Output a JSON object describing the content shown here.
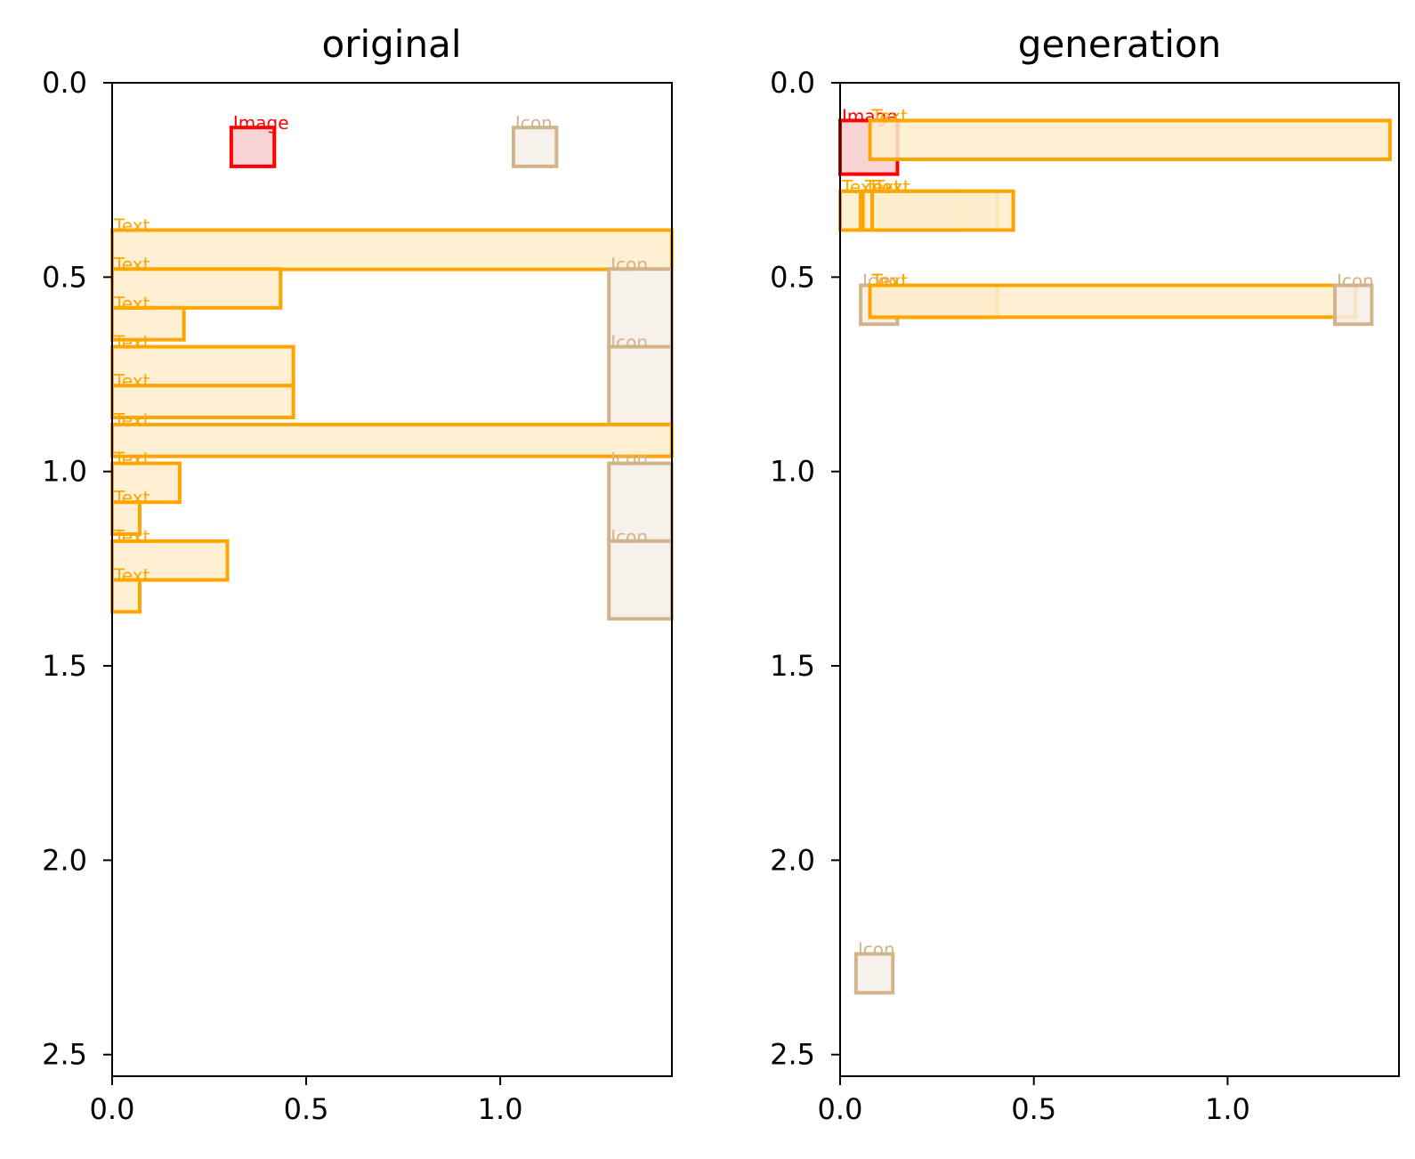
{
  "chart_data": [
    {
      "type": "box-layout",
      "title": "original",
      "xlim": [
        0,
        1.4423
      ],
      "ylim": [
        2.5556,
        0
      ],
      "xticks": [
        "0.0",
        "0.5",
        "1.0"
      ],
      "yticks": [
        "0.0",
        "0.5",
        "1.0",
        "1.5",
        "2.0",
        "2.5"
      ],
      "boxes": [
        {
          "label": "Image",
          "kind": "image",
          "x0": 0.307,
          "y0": 0.115,
          "x1": 0.418,
          "y1": 0.215
        },
        {
          "label": "Icon",
          "kind": "icon",
          "x0": 1.034,
          "y0": 0.115,
          "x1": 1.145,
          "y1": 0.215
        },
        {
          "label": "Text",
          "kind": "text",
          "x0": 0.0,
          "y0": 0.379,
          "x1": 1.442,
          "y1": 0.48
        },
        {
          "label": "Text",
          "kind": "text",
          "x0": 0.0,
          "y0": 0.479,
          "x1": 0.434,
          "y1": 0.579
        },
        {
          "label": "Icon",
          "kind": "icon",
          "x0": 1.28,
          "y0": 0.479,
          "x1": 1.442,
          "y1": 0.679
        },
        {
          "label": "Text",
          "kind": "text",
          "x0": 0.0,
          "y0": 0.579,
          "x1": 0.185,
          "y1": 0.661
        },
        {
          "label": "Text",
          "kind": "text",
          "x0": 0.0,
          "y0": 0.679,
          "x1": 0.467,
          "y1": 0.779
        },
        {
          "label": "Icon",
          "kind": "icon",
          "x0": 1.28,
          "y0": 0.679,
          "x1": 1.442,
          "y1": 0.879
        },
        {
          "label": "Text",
          "kind": "text",
          "x0": 0.0,
          "y0": 0.779,
          "x1": 0.467,
          "y1": 0.861
        },
        {
          "label": "Text",
          "kind": "text",
          "x0": 0.0,
          "y0": 0.879,
          "x1": 1.442,
          "y1": 0.961
        },
        {
          "label": "Text",
          "kind": "text",
          "x0": 0.0,
          "y0": 0.979,
          "x1": 0.174,
          "y1": 1.079
        },
        {
          "label": "Icon",
          "kind": "icon",
          "x0": 1.28,
          "y0": 0.979,
          "x1": 1.442,
          "y1": 1.179
        },
        {
          "label": "Text",
          "kind": "text",
          "x0": 0.0,
          "y0": 1.079,
          "x1": 0.071,
          "y1": 1.161
        },
        {
          "label": "Text",
          "kind": "text",
          "x0": 0.0,
          "y0": 1.179,
          "x1": 0.297,
          "y1": 1.279
        },
        {
          "label": "Icon",
          "kind": "icon",
          "x0": 1.28,
          "y0": 1.179,
          "x1": 1.442,
          "y1": 1.379
        },
        {
          "label": "Text",
          "kind": "text",
          "x0": 0.0,
          "y0": 1.279,
          "x1": 0.071,
          "y1": 1.361
        }
      ]
    },
    {
      "type": "box-layout",
      "title": "generation",
      "xlim": [
        0,
        1.4423
      ],
      "ylim": [
        2.5556,
        0
      ],
      "xticks": [
        "0.0",
        "0.5",
        "1.0"
      ],
      "yticks": [
        "0.0",
        "0.5",
        "1.0",
        "1.5",
        "2.0",
        "2.5"
      ],
      "boxes": [
        {
          "label": "Image",
          "kind": "image",
          "x0": 0.0,
          "y0": 0.097,
          "x1": 0.148,
          "y1": 0.235
        },
        {
          "label": "Text",
          "kind": "text",
          "x0": 0.077,
          "y0": 0.097,
          "x1": 1.419,
          "y1": 0.197
        },
        {
          "label": "Text",
          "kind": "text",
          "x0": 0.0,
          "y0": 0.279,
          "x1": 0.053,
          "y1": 0.379
        },
        {
          "label": "Text",
          "kind": "text",
          "x0": 0.059,
          "y0": 0.279,
          "x1": 0.318,
          "y1": 0.379
        },
        {
          "label": "Text",
          "kind": "text",
          "x0": 0.083,
          "y0": 0.279,
          "x1": 0.406,
          "y1": 0.379
        },
        {
          "label": "Text",
          "kind": "text",
          "x0": 0.083,
          "y0": 0.279,
          "x1": 0.447,
          "y1": 0.379
        },
        {
          "label": "Icon",
          "kind": "icon",
          "x0": 0.053,
          "y0": 0.521,
          "x1": 0.148,
          "y1": 0.621
        },
        {
          "label": "Text",
          "kind": "text",
          "x0": 0.077,
          "y0": 0.521,
          "x1": 0.382,
          "y1": 0.603
        },
        {
          "label": "Text",
          "kind": "text",
          "x0": 0.077,
          "y0": 0.521,
          "x1": 0.406,
          "y1": 0.603
        },
        {
          "label": "Text",
          "kind": "text",
          "x0": 0.077,
          "y0": 0.521,
          "x1": 1.33,
          "y1": 0.603
        },
        {
          "label": "Icon",
          "kind": "icon",
          "x0": 1.277,
          "y0": 0.521,
          "x1": 1.372,
          "y1": 0.621
        },
        {
          "label": "Icon",
          "kind": "icon",
          "x0": 0.041,
          "y0": 2.241,
          "x1": 0.136,
          "y1": 2.341
        }
      ]
    }
  ],
  "colors": {
    "image": {
      "stroke": "#ff0000",
      "fill": "#f8cccc"
    },
    "text": {
      "stroke": "#ffa500",
      "fill": "#ffedcc"
    },
    "icon": {
      "stroke": "#d2b48c",
      "fill": "#f6efe8"
    },
    "axis": "#000000"
  }
}
